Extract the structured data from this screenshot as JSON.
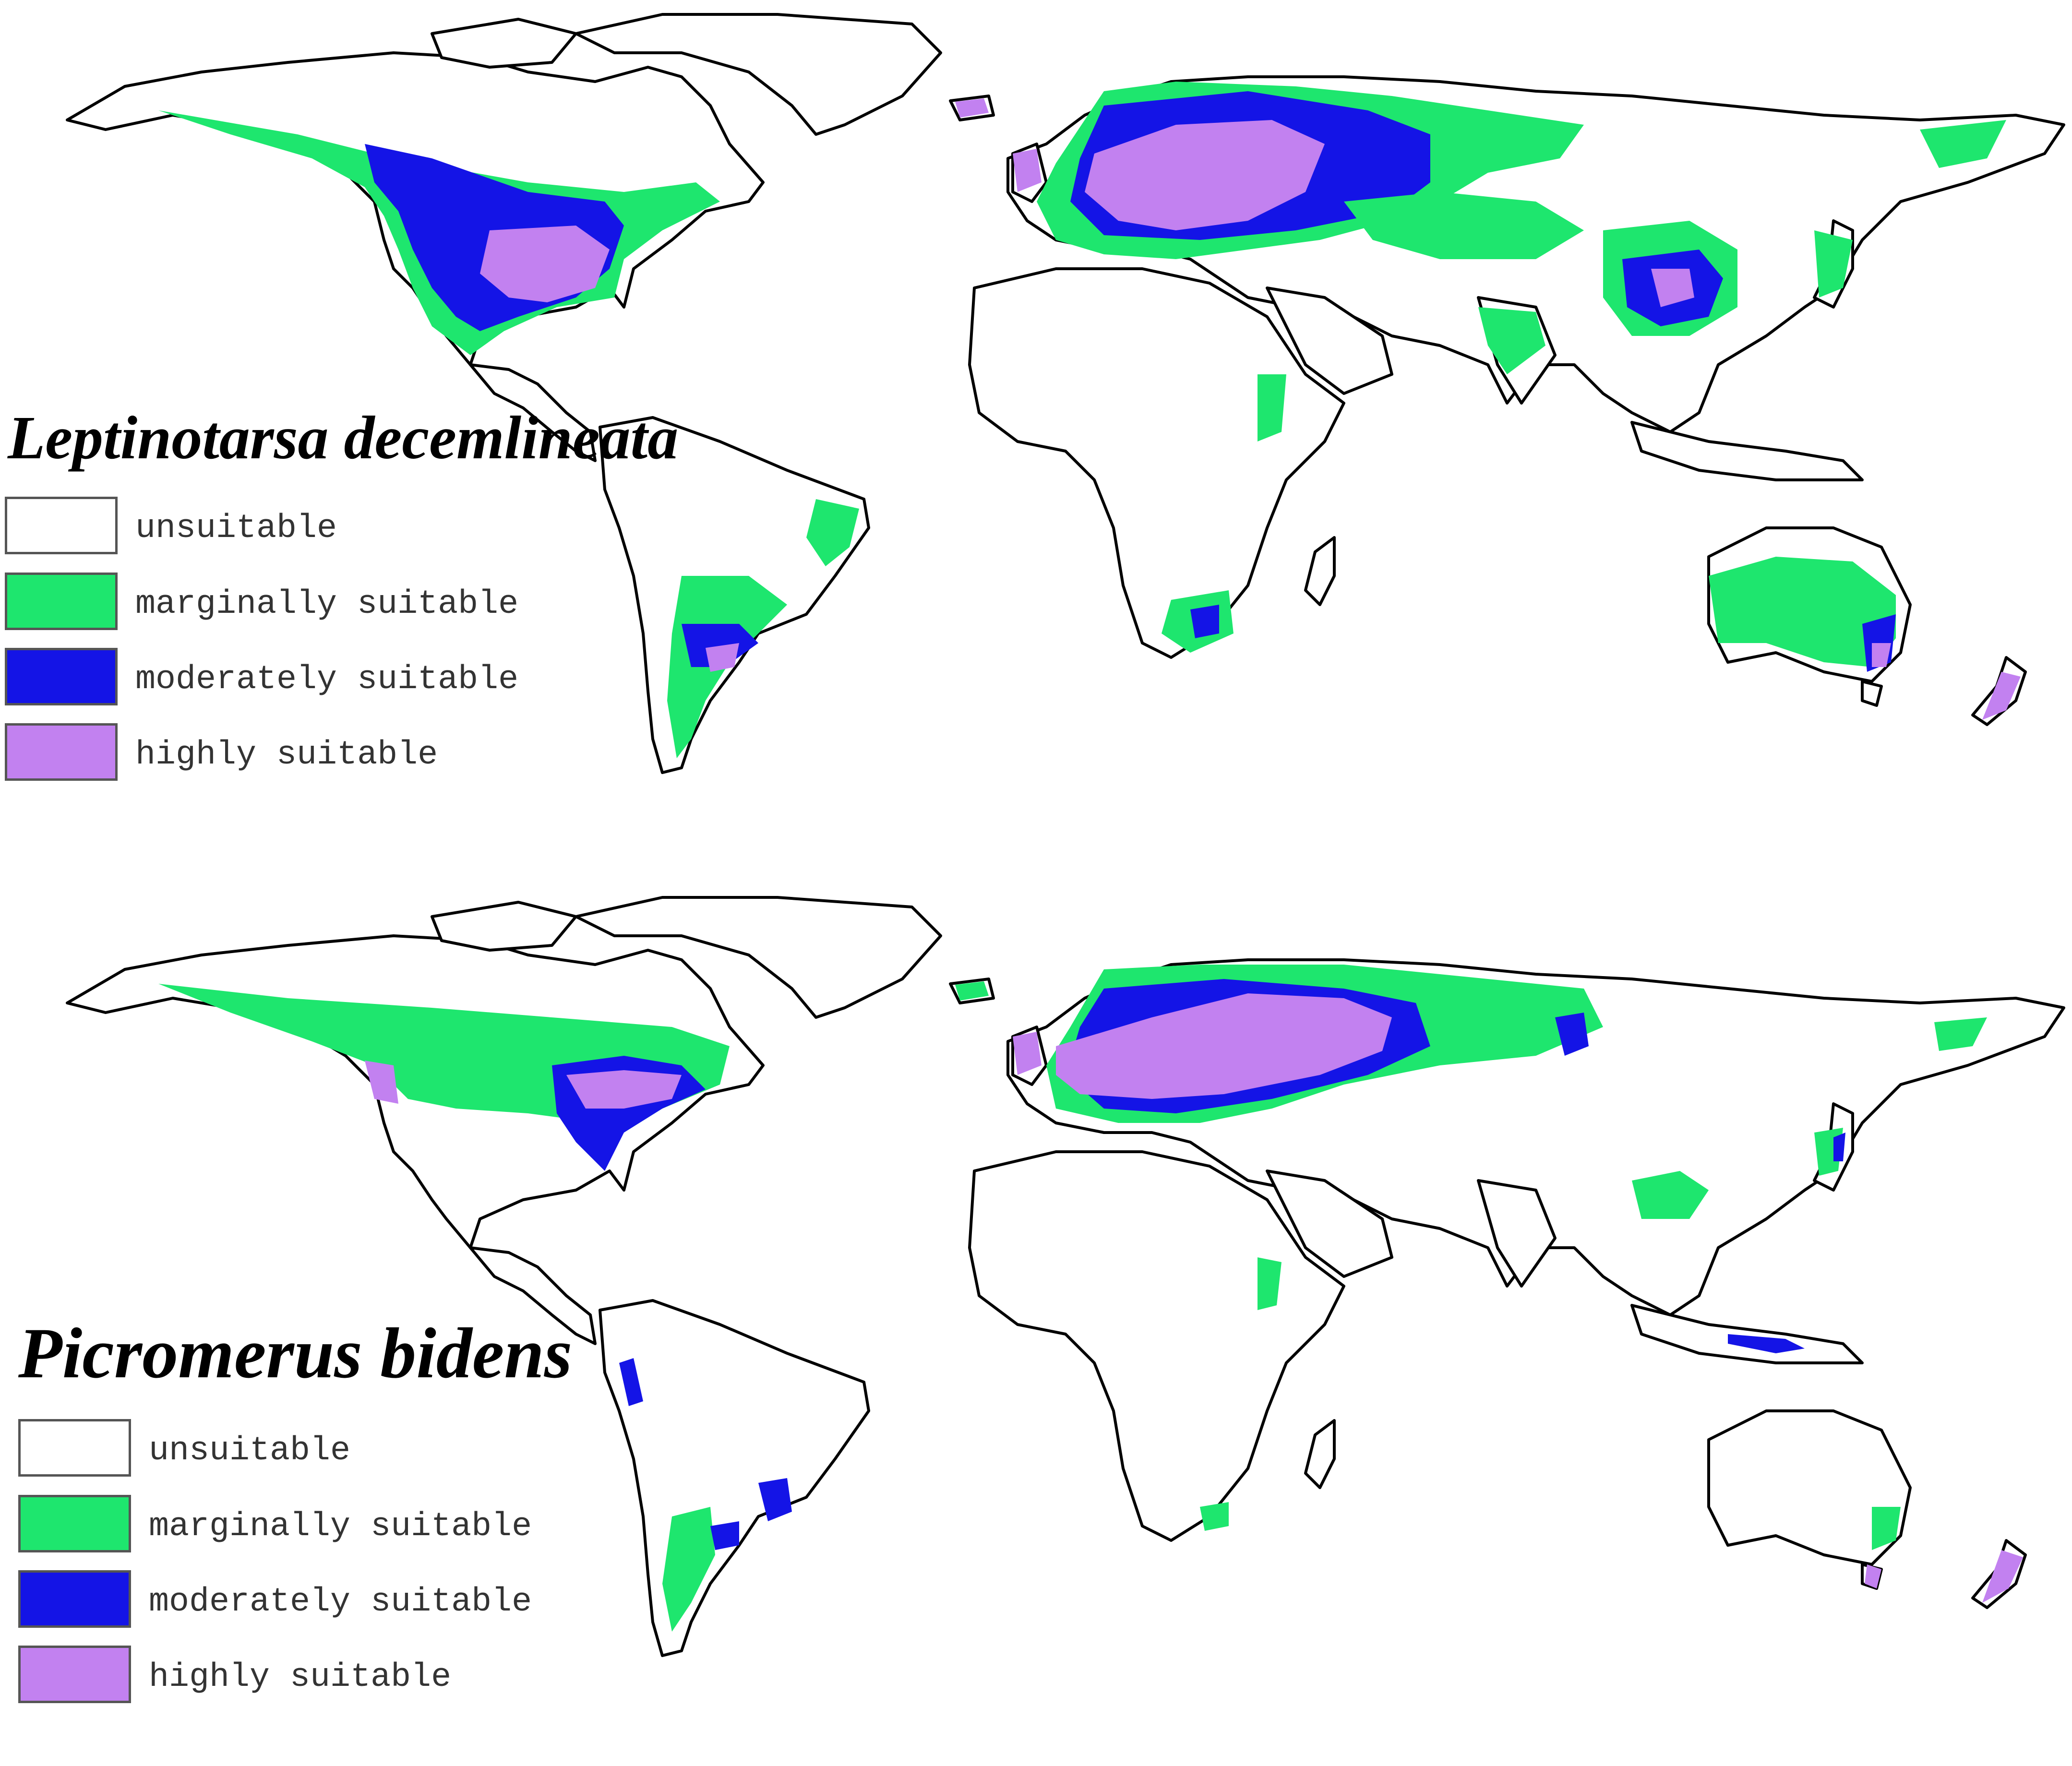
{
  "colors": {
    "unsuitable": "#ffffff",
    "marginally_suitable": "#1ee66e",
    "moderately_suitable": "#1414e6",
    "highly_suitable": "#c281f0",
    "border": "#000000"
  },
  "maps": [
    {
      "species": "Leptinotarsa decemlineata",
      "legend": [
        {
          "label": "unsuitable",
          "color_key": "unsuitable"
        },
        {
          "label": "marginally suitable",
          "color_key": "marginally_suitable"
        },
        {
          "label": "moderately suitable",
          "color_key": "moderately_suitable"
        },
        {
          "label": "highly suitable",
          "color_key": "highly_suitable"
        }
      ]
    },
    {
      "species": "Picromerus bidens",
      "legend": [
        {
          "label": "unsuitable",
          "color_key": "unsuitable"
        },
        {
          "label": "marginally suitable",
          "color_key": "marginally_suitable"
        },
        {
          "label": "moderately suitable",
          "color_key": "moderately_suitable"
        },
        {
          "label": "highly suitable",
          "color_key": "highly_suitable"
        }
      ]
    }
  ]
}
